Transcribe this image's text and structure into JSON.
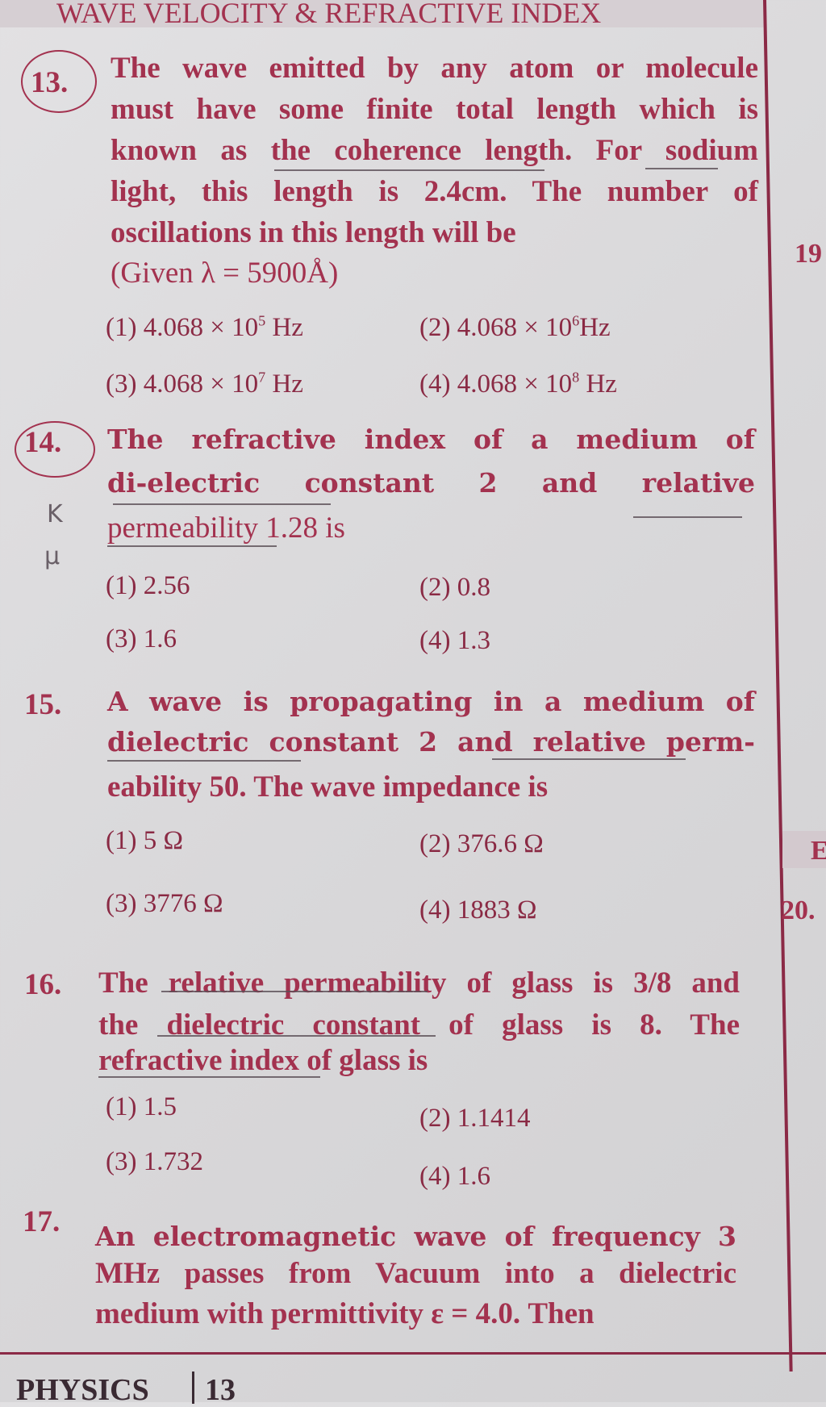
{
  "header": {
    "title": "WAVE VELOCITY & REFRACTIVE INDEX"
  },
  "questions": [
    {
      "number": "13.",
      "lines": [
        "The wave emitted by any atom or molecule",
        "must have some finite total length which is",
        "known as the coherence length. For sodium",
        "light, this length is 2.4cm. The number of",
        "oscillations in this length will be",
        "(Given λ = 5900Å)"
      ],
      "options": [
        {
          "label": "(1)",
          "value": "4.068 × 10",
          "exp": "5",
          "unit": " Hz"
        },
        {
          "label": "(2)",
          "value": "4.068 × 10",
          "exp": "6",
          "unit": "Hz"
        },
        {
          "label": "(3)",
          "value": "4.068 × 10",
          "exp": "7",
          "unit": " Hz"
        },
        {
          "label": "(4)",
          "value": "4.068 × 10",
          "exp": "8",
          "unit": " Hz"
        }
      ]
    },
    {
      "number": "14.",
      "lines": [
        "The refractive index of a medium of",
        "di-electric constant 2 and relative",
        "permeability 1.28 is"
      ],
      "options": [
        {
          "label": "(1)",
          "value": "2.56"
        },
        {
          "label": "(2)",
          "value": "0.8"
        },
        {
          "label": "(3)",
          "value": "1.6"
        },
        {
          "label": "(4)",
          "value": "1.3"
        }
      ]
    },
    {
      "number": "15.",
      "lines": [
        "A wave is propagating in a medium of",
        "dielectric constant 2 and relative perm-",
        "eability 50. The wave impedance is"
      ],
      "options": [
        {
          "label": "(1)",
          "value": "5 Ω"
        },
        {
          "label": "(2)",
          "value": "376.6 Ω"
        },
        {
          "label": "(3)",
          "value": "3776 Ω"
        },
        {
          "label": "(4)",
          "value": "1883 Ω"
        }
      ]
    },
    {
      "number": "16.",
      "lines": [
        "The relative permeability of glass is 3/8 and",
        "the dielectric constant of glass is 8. The",
        "refractive index of glass is"
      ],
      "options": [
        {
          "label": "(1)",
          "value": "1.5"
        },
        {
          "label": "(2)",
          "value": "1.1414"
        },
        {
          "label": "(3)",
          "value": "1.732"
        },
        {
          "label": "(4)",
          "value": "1.6"
        }
      ]
    },
    {
      "number": "17.",
      "lines": [
        "An electromagnetic wave of frequency 3",
        "MHz passes from Vacuum into a dielectric",
        "medium with permittivity ε = 4.0. Then"
      ]
    }
  ],
  "handwritten": [
    "K",
    "μ"
  ],
  "side_column": [
    "19",
    "E",
    "20."
  ],
  "footer": {
    "subject": "PHYSICS",
    "page": "13"
  }
}
